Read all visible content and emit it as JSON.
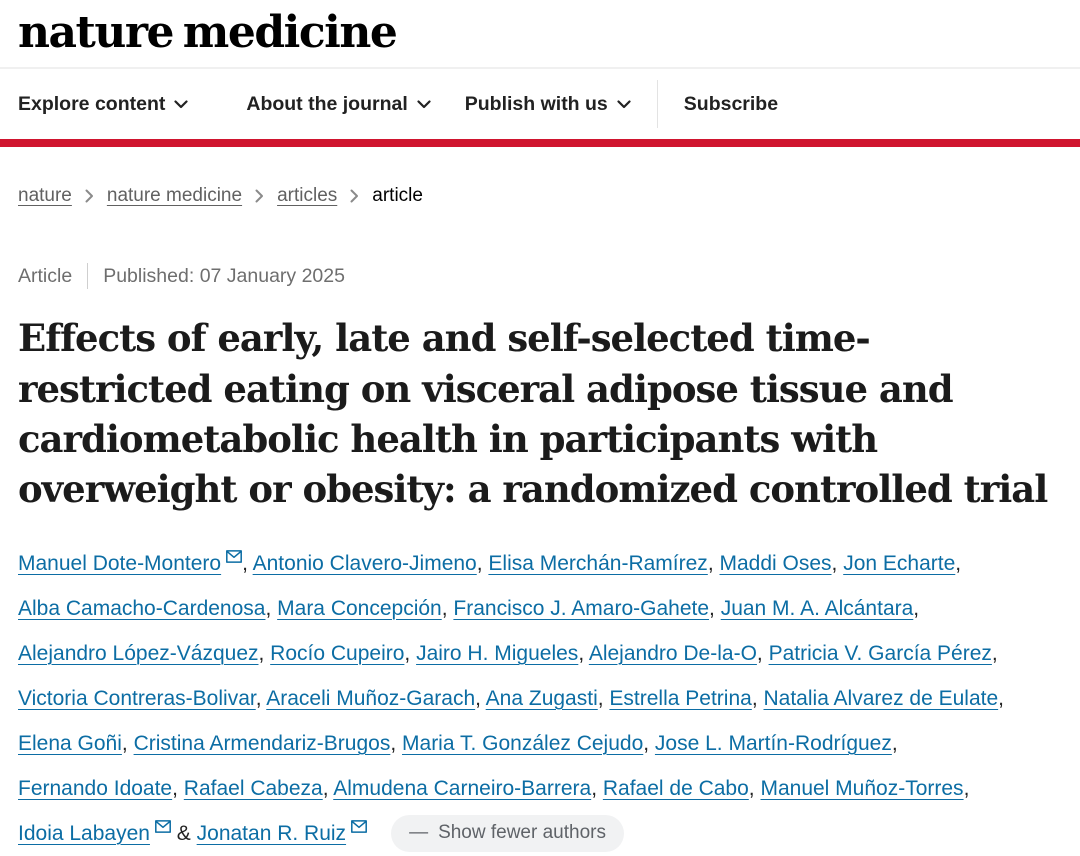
{
  "header": {
    "logo": "nature medicine",
    "nav": [
      {
        "label": "Explore content",
        "dropdown": true
      },
      {
        "label": "About the journal",
        "dropdown": true
      },
      {
        "label": "Publish with us",
        "dropdown": true
      },
      {
        "label": "Subscribe",
        "dropdown": false
      }
    ]
  },
  "breadcrumb": {
    "links": [
      "nature",
      "nature medicine",
      "articles"
    ],
    "current": "article"
  },
  "article_meta": {
    "type": "Article",
    "published_label": "Published:",
    "published_date": "07 January 2025"
  },
  "article": {
    "title": "Effects of early, late and self-selected time-restricted eating on visceral adipose tissue and cardiometabolic health in participants with overweight or obesity: a randomized controlled trial"
  },
  "authors": {
    "list": [
      {
        "name": "Manuel Dote-Montero",
        "email": true
      },
      {
        "name": "Antonio Clavero-Jimeno",
        "email": false
      },
      {
        "name": "Elisa Merchán-Ramírez",
        "email": false
      },
      {
        "name": "Maddi Oses",
        "email": false
      },
      {
        "name": "Jon Echarte",
        "email": false
      },
      {
        "name": "Alba Camacho-Cardenosa",
        "email": false
      },
      {
        "name": "Mara Concepción",
        "email": false
      },
      {
        "name": "Francisco J. Amaro-Gahete",
        "email": false
      },
      {
        "name": "Juan M. A. Alcántara",
        "email": false
      },
      {
        "name": "Alejandro López-Vázquez",
        "email": false
      },
      {
        "name": "Rocío Cupeiro",
        "email": false
      },
      {
        "name": "Jairo H. Migueles",
        "email": false
      },
      {
        "name": "Alejandro De-la-O",
        "email": false
      },
      {
        "name": "Patricia V. García Pérez",
        "email": false
      },
      {
        "name": "Victoria Contreras-Bolivar",
        "email": false
      },
      {
        "name": "Araceli Muñoz-Garach",
        "email": false
      },
      {
        "name": "Ana Zugasti",
        "email": false
      },
      {
        "name": "Estrella Petrina",
        "email": false
      },
      {
        "name": "Natalia Alvarez de Eulate",
        "email": false
      },
      {
        "name": "Elena Goñi",
        "email": false
      },
      {
        "name": "Cristina Armendariz-Brugos",
        "email": false
      },
      {
        "name": "Maria T. González Cejudo",
        "email": false
      },
      {
        "name": "Jose L. Martín-Rodríguez",
        "email": false
      },
      {
        "name": "Fernando Idoate",
        "email": false
      },
      {
        "name": "Rafael Cabeza",
        "email": false
      },
      {
        "name": "Almudena Carneiro-Barrera",
        "email": false
      },
      {
        "name": "Rafael de Cabo",
        "email": false
      },
      {
        "name": "Manuel Muñoz-Torres",
        "email": false
      },
      {
        "name": "Idoia Labayen",
        "email": true
      },
      {
        "name": "Jonatan R. Ruiz",
        "email": true
      }
    ],
    "separator": ", ",
    "last_separator": " & ",
    "dash_icon": "—",
    "show_fewer_label": "Show fewer authors"
  },
  "colors": {
    "brand_bar": "#d0152f",
    "link_blue": "#0c6da4",
    "breadcrumb_gray": "#616161",
    "meta_gray": "#6e6e6e"
  }
}
